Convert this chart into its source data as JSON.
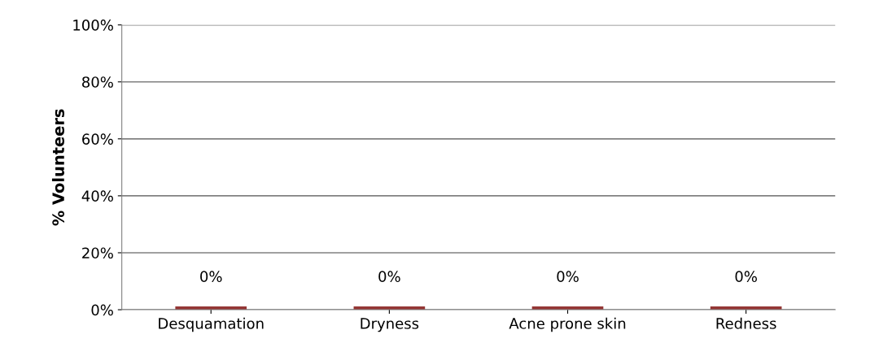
{
  "chart_data": {
    "type": "bar",
    "ylabel": "% Volunteers",
    "categories": [
      "Desquamation",
      "Dryness",
      "Acne prone skin",
      "Redness"
    ],
    "values": [
      0,
      0,
      0,
      0
    ],
    "color": "#953735",
    "value_labels": [
      "0%",
      "0%",
      "0%",
      "0%"
    ],
    "ylim": [
      0,
      100
    ],
    "yticks": [
      {
        "value": 0,
        "label": "0%"
      },
      {
        "value": 20,
        "label": "20%"
      },
      {
        "value": 40,
        "label": "40%"
      },
      {
        "value": 60,
        "label": "60%"
      },
      {
        "value": 80,
        "label": "80%"
      },
      {
        "value": 100,
        "label": "100%"
      }
    ],
    "grid": "y"
  }
}
